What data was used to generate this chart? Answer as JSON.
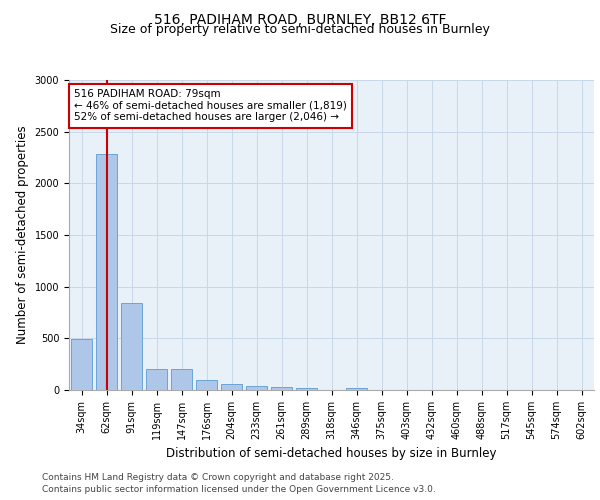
{
  "title_line1": "516, PADIHAM ROAD, BURNLEY, BB12 6TF",
  "title_line2": "Size of property relative to semi-detached houses in Burnley",
  "xlabel": "Distribution of semi-detached houses by size in Burnley",
  "ylabel": "Number of semi-detached properties",
  "categories": [
    "34sqm",
    "62sqm",
    "91sqm",
    "119sqm",
    "147sqm",
    "176sqm",
    "204sqm",
    "233sqm",
    "261sqm",
    "289sqm",
    "318sqm",
    "346sqm",
    "375sqm",
    "403sqm",
    "432sqm",
    "460sqm",
    "488sqm",
    "517sqm",
    "545sqm",
    "574sqm",
    "602sqm"
  ],
  "values": [
    490,
    2280,
    840,
    200,
    200,
    95,
    60,
    40,
    30,
    20,
    0,
    15,
    0,
    0,
    0,
    0,
    0,
    0,
    0,
    0,
    0
  ],
  "bar_color": "#aec6e8",
  "bar_edge_color": "#5b9bd5",
  "grid_color": "#c8d8e8",
  "background_color": "#e8f0f8",
  "vline_x_index": 1,
  "vline_color": "#cc0000",
  "annotation_text": "516 PADIHAM ROAD: 79sqm\n← 46% of semi-detached houses are smaller (1,819)\n52% of semi-detached houses are larger (2,046) →",
  "annotation_box_color": "#ffffff",
  "annotation_box_edge": "#cc0000",
  "ylim": [
    0,
    3000
  ],
  "yticks": [
    0,
    500,
    1000,
    1500,
    2000,
    2500,
    3000
  ],
  "footnote_line1": "Contains HM Land Registry data © Crown copyright and database right 2025.",
  "footnote_line2": "Contains public sector information licensed under the Open Government Licence v3.0.",
  "title_fontsize": 10,
  "subtitle_fontsize": 9,
  "axis_label_fontsize": 8.5,
  "tick_fontsize": 7,
  "annotation_fontsize": 7.5,
  "footnote_fontsize": 6.5
}
